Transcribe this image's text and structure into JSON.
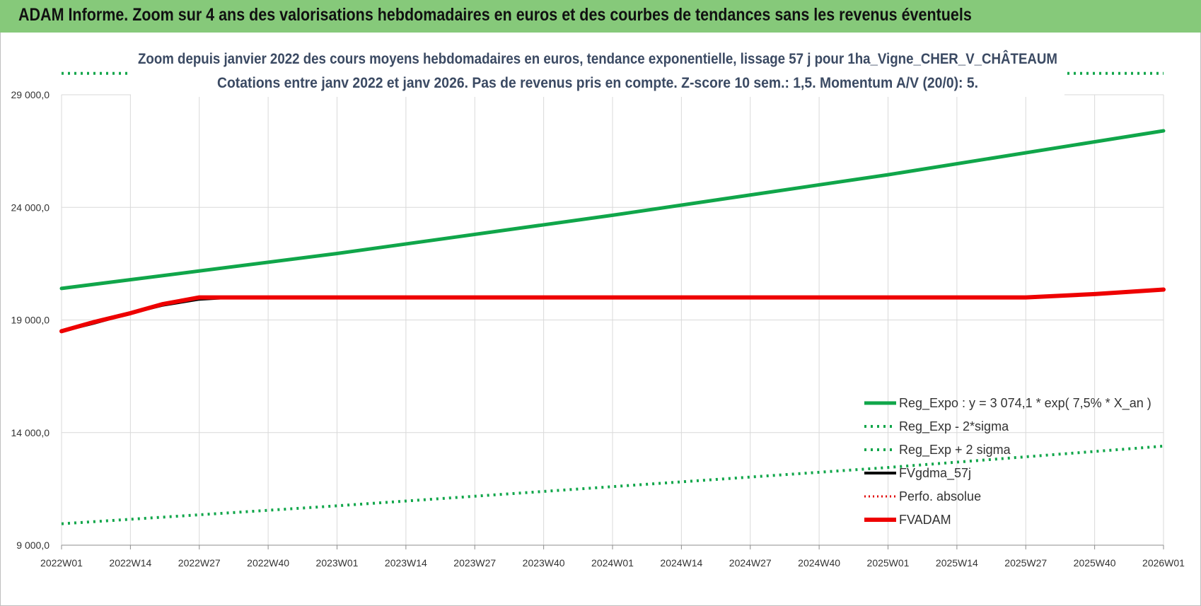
{
  "page": {
    "banner_title": "ADAM Informe. Zoom sur 4 ans des valorisations hebdomadaires en euros et des courbes de tendances sans les revenus éventuels"
  },
  "colors": {
    "banner_bg": "#86c97a",
    "reg_expo": "#10a64a",
    "fvgdma": "#000000",
    "perfo": "#e00000",
    "fvadam": "#ee0000",
    "grid": "#d9d9d9",
    "title_text": "#3b4a63"
  },
  "chart_data": {
    "type": "line",
    "title": [
      "Zoom depuis janvier 2022 des cours moyens hebdomadaires en euros, tendance exponentielle, lissage 57 j pour 1ha_Vigne_CHER_V_CHÂTEAUM",
      "Cotations entre janv 2022 et janv 2026. Pas de revenus pris en compte. Z-score 10 sem.: 1,5. Momentum A/V (20/0): 5."
    ],
    "xlabel": "",
    "ylabel": "",
    "ylim": [
      9000,
      29000
    ],
    "yticks": [
      9000,
      14000,
      19000,
      24000,
      29000
    ],
    "ytick_labels": [
      "9 000,0",
      "14 000,0",
      "19 000,0",
      "24 000,0",
      "29 000,0"
    ],
    "x_range": [
      0,
      208
    ],
    "x_ticks": [
      0,
      13,
      26,
      39,
      52,
      65,
      78,
      91,
      104,
      117,
      130,
      143,
      156,
      169,
      182,
      195,
      208
    ],
    "x_tick_labels": [
      "2022W01",
      "2022W14",
      "2022W27",
      "2022W40",
      "2023W01",
      "2023W14",
      "2023W27",
      "2023W40",
      "2024W01",
      "2024W14",
      "2024W27",
      "2024W40",
      "2025W01",
      "2025W14",
      "2025W27",
      "2025W40",
      "2026W01"
    ],
    "grid": true,
    "legend_position": "bottom-right",
    "series": [
      {
        "name": "Reg_Expo : y = 3 074,1 * exp( 7,5% *  X_an )",
        "style": "solid",
        "color_key": "reg_expo",
        "width": 5,
        "x": [
          0,
          52,
          104,
          156,
          208
        ],
        "values": [
          20400,
          21950,
          23650,
          25450,
          27400
        ]
      },
      {
        "name": "Reg_Exp - 2*sigma",
        "style": "dotted",
        "color_key": "reg_expo",
        "width": 4,
        "x": [
          0,
          52,
          104,
          156,
          208
        ],
        "values": [
          9950,
          10750,
          11600,
          12450,
          13400
        ]
      },
      {
        "name": "Reg_Exp + 2 sigma",
        "style": "dotted",
        "color_key": "reg_expo",
        "width": 4,
        "x": [
          0,
          208
        ],
        "values": [
          29950,
          29950
        ]
      },
      {
        "name": "FVgdma_57j",
        "style": "solid",
        "color_key": "fvgdma",
        "width": 4,
        "x": [
          0,
          6,
          13,
          19,
          26,
          32,
          36,
          42
        ],
        "values": [
          18500,
          18850,
          19300,
          19650,
          19920,
          20000,
          20000,
          20000
        ]
      },
      {
        "name": "Perfo. absolue",
        "style": "dotted",
        "color_key": "perfo",
        "width": 3,
        "x": [],
        "values": []
      },
      {
        "name": "FVADAM",
        "style": "solid",
        "color_key": "fvadam",
        "width": 6,
        "x": [
          0,
          6,
          13,
          19,
          26,
          30,
          52,
          104,
          156,
          182,
          195,
          208
        ],
        "values": [
          18500,
          18900,
          19300,
          19700,
          20000,
          20000,
          20000,
          20000,
          20000,
          20000,
          20150,
          20350
        ]
      }
    ]
  }
}
